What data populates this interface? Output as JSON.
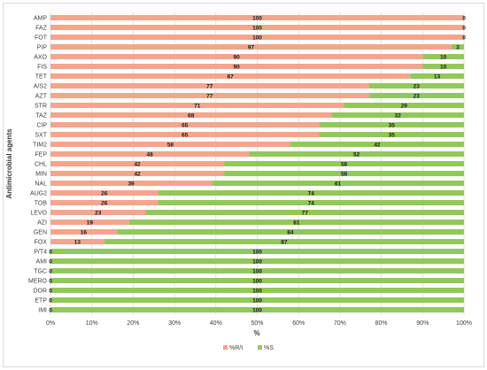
{
  "chart_data": {
    "type": "bar",
    "orientation": "horizontal",
    "stacked": "percent",
    "categories": [
      "AMP",
      "FAZ",
      "FOT",
      "PIP",
      "AXO",
      "FIS",
      "TET",
      "A/S2",
      "AZT",
      "STR",
      "TAZ",
      "CIP",
      "SXT",
      "TIM2",
      "FEP",
      "CHL",
      "MIN",
      "NAL",
      "AUG2",
      "TOB",
      "LEVO",
      "AZI",
      "GEN",
      "FOX",
      "P/T4",
      "AMI",
      "TGC",
      "MERO",
      "DOR",
      "ETP",
      "IMI"
    ],
    "series": [
      {
        "name": "%R/I",
        "color": "#f4a58c",
        "values": [
          100,
          100,
          100,
          97,
          90,
          90,
          87,
          77,
          77,
          71,
          68,
          65,
          65,
          58,
          48,
          42,
          42,
          39,
          26,
          26,
          23,
          19,
          16,
          13,
          0,
          0,
          0,
          0,
          0,
          0,
          0
        ]
      },
      {
        "name": "%S",
        "color": "#92c85a",
        "values": [
          0,
          0,
          0,
          3,
          10,
          10,
          13,
          23,
          23,
          29,
          32,
          35,
          35,
          42,
          52,
          58,
          58,
          61,
          74,
          74,
          77,
          81,
          84,
          87,
          100,
          100,
          100,
          100,
          100,
          100,
          100
        ]
      }
    ],
    "xlabel": "%",
    "ylabel": "Antimicrobial agents",
    "xlim": [
      0,
      100
    ],
    "xticks": [
      0,
      10,
      20,
      30,
      40,
      50,
      60,
      70,
      80,
      90,
      100
    ],
    "xtick_labels": [
      "0%",
      "10%",
      "20%",
      "30%",
      "40%",
      "50%",
      "60%",
      "70%",
      "80%",
      "90%",
      "100%"
    ],
    "grid": "vertical",
    "legend": "bottom",
    "data_labels": true
  }
}
